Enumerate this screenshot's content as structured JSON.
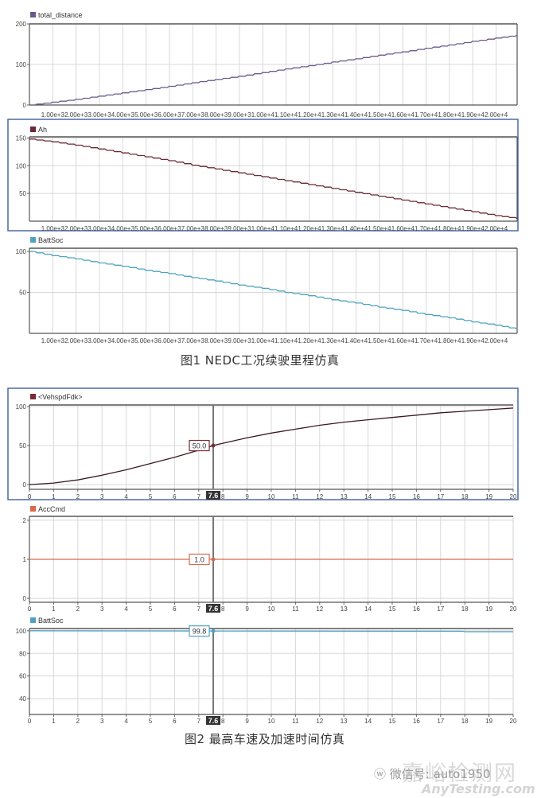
{
  "figure1": {
    "caption": "图1    NEDC工况续驶里程仿真",
    "x_tick_labels": [
      "1.00e+3",
      "2.00e+3",
      "3.00e+3",
      "4.00e+3",
      "5.00e+3",
      "6.00e+3",
      "7.00e+3",
      "8.00e+3",
      "9.00e+3",
      "1.00e+4",
      "1.10e+4",
      "1.20e+4",
      "1.30e+4",
      "1.40e+4",
      "1.50e+4",
      "1.60e+4",
      "1.70e+4",
      "1.80e+4",
      "1.90e+4",
      "2.00e+4"
    ],
    "panels": [
      {
        "legend": "total_distance",
        "color": "#6b5a8e",
        "y_ticks": [
          "200",
          "100",
          "0"
        ]
      },
      {
        "legend": "Ah",
        "color": "#6b2a35",
        "y_ticks": [
          "150",
          "100",
          "50"
        ]
      },
      {
        "legend": "BattSoc",
        "color": "#4fa3c0",
        "y_ticks": [
          "100",
          "50"
        ]
      }
    ]
  },
  "figure2": {
    "caption": "图2    最高车速及加速时间仿真",
    "x_tick_labels": [
      "0",
      "1",
      "2",
      "3",
      "4",
      "5",
      "6",
      "7",
      "8",
      "9",
      "10",
      "11",
      "12",
      "13",
      "14",
      "15",
      "16",
      "17",
      "18",
      "19",
      "20"
    ],
    "cursor_label": "7.6",
    "panels": [
      {
        "legend": "<VehspdFdk>",
        "color": "#7a2a35",
        "y_ticks": [
          "100",
          "50",
          "0"
        ],
        "cursor_value": "50.0"
      },
      {
        "legend": "AccCmd",
        "color": "#d9694a",
        "y_ticks": [
          "2",
          "1",
          "0"
        ],
        "cursor_value": "1.0"
      },
      {
        "legend": "BattSoc",
        "color": "#4fa3c0",
        "y_ticks": [
          "100",
          "80",
          "60",
          "40"
        ],
        "cursor_value": "99.8"
      }
    ]
  },
  "watermark": {
    "site_cn": "嘉峪检测网",
    "wechat": "微信号: auto1950",
    "site_en": "AnyTesting.com"
  },
  "chart_data": [
    {
      "type": "line",
      "title": "total_distance",
      "xlabel": "",
      "ylabel": "",
      "x": [
        0,
        1000,
        2000,
        3000,
        4000,
        5000,
        6000,
        7000,
        8000,
        9000,
        10000,
        11000,
        12000,
        13000,
        14000,
        15000,
        16000,
        17000,
        18000,
        19000,
        20000,
        20900
      ],
      "series": [
        {
          "name": "total_distance",
          "values": [
            0,
            7,
            14,
            22,
            30,
            38,
            46,
            55,
            63,
            71,
            80,
            89,
            97,
            106,
            114,
            123,
            131,
            140,
            148,
            157,
            165,
            172
          ]
        }
      ],
      "ylim": [
        0,
        200
      ],
      "grid": true,
      "legend_position": "top-left"
    },
    {
      "type": "line",
      "title": "Ah",
      "xlabel": "",
      "ylabel": "",
      "x": [
        0,
        1000,
        2000,
        3000,
        4000,
        5000,
        6000,
        7000,
        8000,
        9000,
        10000,
        11000,
        12000,
        13000,
        14000,
        15000,
        16000,
        17000,
        18000,
        19000,
        20000,
        20900
      ],
      "series": [
        {
          "name": "Ah",
          "values": [
            148,
            143,
            137,
            130,
            123,
            116,
            109,
            101,
            94,
            87,
            80,
            73,
            66,
            59,
            52,
            45,
            38,
            31,
            24,
            17,
            10,
            5
          ]
        }
      ],
      "ylim": [
        0,
        155
      ],
      "grid": true,
      "legend_position": "top-left"
    },
    {
      "type": "line",
      "title": "BattSoc",
      "xlabel": "",
      "ylabel": "",
      "x": [
        0,
        1000,
        2000,
        3000,
        4000,
        5000,
        6000,
        7000,
        8000,
        9000,
        10000,
        11000,
        12000,
        13000,
        14000,
        15000,
        16000,
        17000,
        18000,
        19000,
        20000,
        20900
      ],
      "series": [
        {
          "name": "BattSoc",
          "values": [
            100,
            95,
            91,
            86,
            82,
            77,
            73,
            68,
            64,
            59,
            55,
            50,
            46,
            41,
            37,
            32,
            28,
            23,
            19,
            14,
            10,
            5
          ]
        }
      ],
      "ylim": [
        0,
        105
      ],
      "grid": true,
      "legend_position": "top-left"
    },
    {
      "type": "line",
      "title": "<VehspdFdk>",
      "xlabel": "",
      "ylabel": "",
      "x": [
        0,
        1,
        2,
        3,
        4,
        5,
        6,
        7,
        7.6,
        8,
        9,
        10,
        11,
        12,
        13,
        14,
        15,
        16,
        17,
        18,
        19,
        20
      ],
      "series": [
        {
          "name": "<VehspdFdk>",
          "values": [
            0,
            2,
            6,
            12,
            19,
            27,
            35,
            44,
            50,
            53,
            60,
            66,
            71,
            76,
            80,
            83,
            86,
            89,
            92,
            94,
            96,
            98
          ]
        }
      ],
      "ylim": [
        -5,
        103
      ],
      "grid": true,
      "cursor": {
        "x": 7.6,
        "value": 50.0
      }
    },
    {
      "type": "line",
      "title": "AccCmd",
      "xlabel": "",
      "ylabel": "",
      "x": [
        0,
        20
      ],
      "series": [
        {
          "name": "AccCmd",
          "values": [
            1,
            1
          ]
        }
      ],
      "ylim": [
        -0.1,
        2.1
      ],
      "grid": true,
      "cursor": {
        "x": 7.6,
        "value": 1.0
      }
    },
    {
      "type": "line",
      "title": "BattSoc",
      "xlabel": "",
      "ylabel": "",
      "x": [
        0,
        7.6,
        17.9,
        18,
        20
      ],
      "series": [
        {
          "name": "BattSoc",
          "values": [
            100,
            99.8,
            99.6,
            99.2,
            99.2
          ]
        }
      ],
      "ylim": [
        26,
        102
      ],
      "grid": true,
      "cursor": {
        "x": 7.6,
        "value": 99.8
      }
    }
  ]
}
